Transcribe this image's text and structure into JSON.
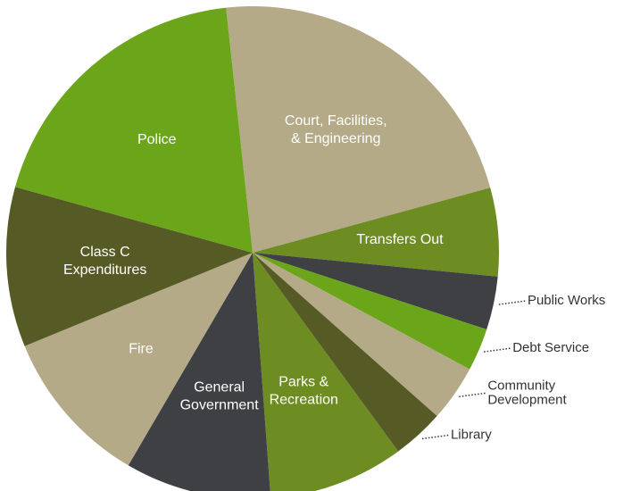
{
  "chart_data": {
    "type": "pie",
    "categories": [
      "Court, Facilities,\n& Engineering",
      "Transfers Out",
      "Public Works",
      "Debt Service",
      "Community\nDevelopment",
      "Library",
      "Parks &\nRecreation",
      "General\nGovernment",
      "Fire",
      "Class C\nExpenditures",
      "Police"
    ],
    "values": [
      22.5,
      5.8,
      3.5,
      2.8,
      3.7,
      3.4,
      8.9,
      9.6,
      10.4,
      10.5,
      19.0
    ],
    "colors": [
      "#b5aa87",
      "#6d8c22",
      "#3f4043",
      "#6aa51a",
      "#b5aa87",
      "#565b26",
      "#6d8c22",
      "#3f4043",
      "#b5aa87",
      "#565b26",
      "#6aa51a"
    ]
  }
}
